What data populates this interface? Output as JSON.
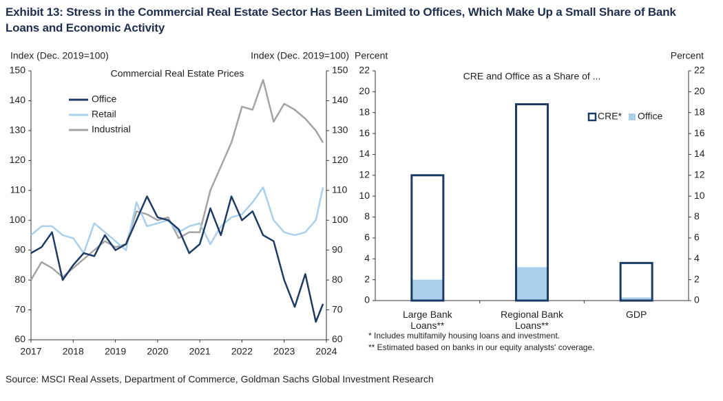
{
  "title": "Exhibit 13: Stress in the Commercial Real Estate Sector Has Been Limited to Offices, Which Make Up a Small Share of Bank Loans and Economic Activity",
  "source": "Source: MSCI Real Assets, Department of Commerce, Goldman Sachs Global Investment Research",
  "chart_data": [
    {
      "type": "line",
      "subtitle": "Commercial Real Estate Prices",
      "ylabel": "Index (Dec. 2019=100)",
      "y2label": "Index (Dec. 2019=100)",
      "x": [
        2017.0,
        2017.25,
        2017.5,
        2017.75,
        2018.0,
        2018.25,
        2018.5,
        2018.75,
        2019.0,
        2019.25,
        2019.5,
        2019.75,
        2020.0,
        2020.25,
        2020.5,
        2020.75,
        2021.0,
        2021.25,
        2021.5,
        2021.75,
        2022.0,
        2022.25,
        2022.5,
        2022.75,
        2023.0,
        2023.25,
        2023.5,
        2023.75,
        2023.92
      ],
      "series": [
        {
          "name": "Office",
          "color": "#1c3a63",
          "values": [
            89,
            91,
            96,
            80,
            85,
            89,
            88,
            95,
            90,
            92,
            100,
            108,
            101,
            100,
            97,
            89,
            92,
            104,
            95,
            108,
            100,
            103,
            95,
            93,
            80,
            71,
            82,
            66,
            72
          ]
        },
        {
          "name": "Retail",
          "color": "#a9cfea",
          "values": [
            95,
            98,
            98,
            95,
            94,
            89,
            99,
            96,
            93,
            90,
            106,
            98,
            99,
            100,
            96,
            98,
            99,
            92,
            98,
            101,
            102,
            106,
            111,
            100,
            96,
            95,
            96,
            100,
            111
          ]
        },
        {
          "name": "Industrial",
          "color": "#a3a3a3",
          "values": [
            80,
            86,
            84,
            81,
            84,
            87,
            90,
            93,
            91,
            92,
            103,
            102,
            100,
            101,
            94,
            96,
            96,
            110,
            118,
            126,
            138,
            137,
            147,
            133,
            139,
            137,
            134,
            130,
            126
          ]
        }
      ],
      "xlim": [
        2017,
        2024
      ],
      "xticks": [
        2017,
        2018,
        2019,
        2020,
        2021,
        2022,
        2023,
        2024
      ],
      "ylim": [
        60,
        150
      ],
      "yticks": [
        60,
        70,
        80,
        90,
        100,
        110,
        120,
        130,
        140,
        150
      ],
      "y2lim": [
        60,
        150
      ],
      "y2ticks": [
        60,
        70,
        80,
        90,
        100,
        110,
        120,
        130,
        140,
        150
      ],
      "legend": "upper left",
      "grid": false
    },
    {
      "type": "bar",
      "subtitle": "CRE and Office as a Share of ...",
      "ylabel": "Percent",
      "y2label": "Percent",
      "categories": [
        "Large Bank Loans**",
        "Regional Bank Loans**",
        "GDP"
      ],
      "series": [
        {
          "name": "CRE*",
          "color": "#1c3a63",
          "outline": true,
          "values": [
            12,
            18.8,
            3.6
          ]
        },
        {
          "name": "Office",
          "color": "#a9cfea",
          "values": [
            2,
            3.2,
            0.3
          ]
        }
      ],
      "ylim": [
        0,
        22
      ],
      "yticks": [
        0,
        2,
        4,
        6,
        8,
        10,
        12,
        14,
        16,
        18,
        20,
        22
      ],
      "y2lim": [
        0,
        22
      ],
      "y2ticks": [
        0,
        2,
        4,
        6,
        8,
        10,
        12,
        14,
        16,
        18,
        20,
        22
      ],
      "notes": [
        "* Includes multifamily housing loans and investment.",
        "** Estimated based on banks in our equity analysts' coverage."
      ],
      "legend": "right",
      "grid": false
    }
  ]
}
